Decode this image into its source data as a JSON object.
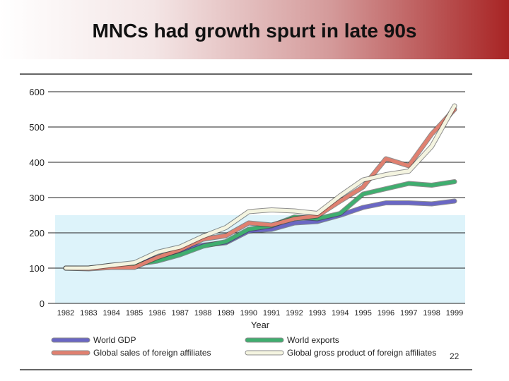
{
  "slide": {
    "title": "MNCs had growth spurt in late 90s",
    "page_number": "22"
  },
  "chart_data": {
    "type": "line",
    "title": "",
    "xlabel": "Year",
    "ylabel": "",
    "ylim": [
      0,
      600
    ],
    "yticks": [
      0,
      100,
      200,
      300,
      400,
      500,
      600
    ],
    "categories": [
      "1982",
      "1983",
      "1984",
      "1985",
      "1986",
      "1987",
      "1988",
      "1989",
      "1990",
      "1991",
      "1992",
      "1993",
      "1994",
      "1995",
      "1996",
      "1997",
      "1998",
      "1999"
    ],
    "grid": true,
    "legend_position": "bottom",
    "series": [
      {
        "name": "World GDP",
        "color": "#6a67c4",
        "values": [
          100,
          100,
          108,
          112,
          130,
          150,
          165,
          172,
          205,
          210,
          228,
          232,
          250,
          272,
          285,
          285,
          282,
          290
        ]
      },
      {
        "name": "World exports",
        "color": "#3fae6f",
        "values": [
          100,
          100,
          105,
          110,
          120,
          138,
          162,
          175,
          210,
          220,
          245,
          240,
          255,
          310,
          325,
          340,
          335,
          345
        ]
      },
      {
        "name": "Global sales of foreign affiliates",
        "color": "#e08070",
        "values": [
          100,
          98,
          102,
          102,
          130,
          152,
          182,
          192,
          228,
          222,
          240,
          248,
          290,
          330,
          410,
          390,
          480,
          550
        ]
      },
      {
        "name": "Global gross product of foreign affiliates",
        "color": "#f4f4e0",
        "outline": "#555555",
        "values": [
          100,
          100,
          108,
          115,
          145,
          160,
          190,
          215,
          260,
          265,
          262,
          255,
          305,
          350,
          365,
          375,
          445,
          560
        ]
      }
    ]
  }
}
